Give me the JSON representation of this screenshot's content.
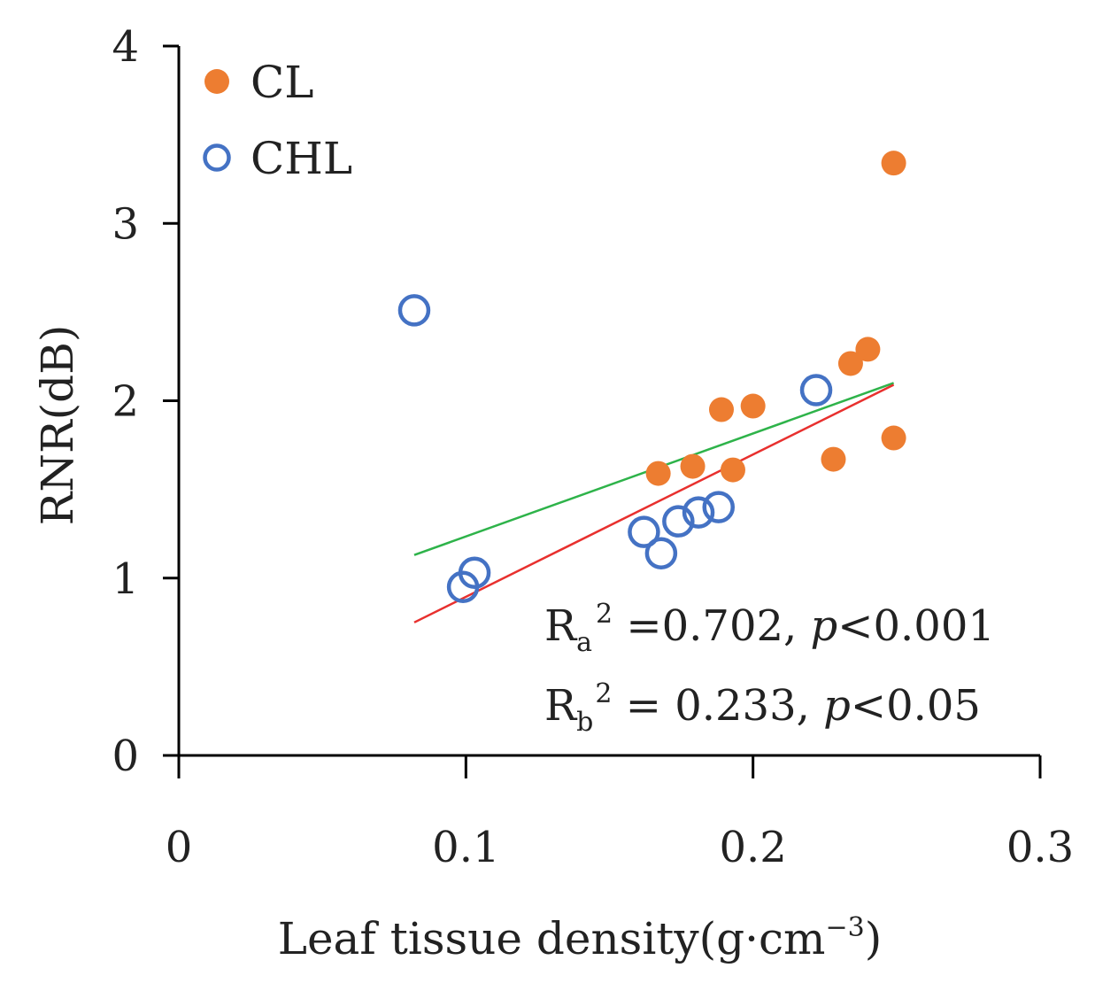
{
  "chart_data": {
    "type": "scatter",
    "title": "",
    "xlabel": "Leaf tissue density(g·cm−3)",
    "xlabel_base": "Leaf tissue density(g·cm",
    "xlabel_exp": "−3",
    "xlabel_close": ")",
    "ylabel": "RNR(dB)",
    "xlim": [
      0,
      0.3
    ],
    "ylim": [
      0,
      4
    ],
    "xticks": [
      0,
      0.1,
      0.2,
      0.3
    ],
    "xtick_labels": [
      "0",
      "0.1",
      "0.2",
      "0.3"
    ],
    "yticks": [
      0,
      1,
      2,
      3,
      4
    ],
    "ytick_labels": [
      "0",
      "1",
      "2",
      "3",
      "4"
    ],
    "grid": false,
    "legend_position": "top-left",
    "series": [
      {
        "name": "CL",
        "marker": "filled-circle",
        "color": "#ED7D31",
        "points": [
          [
            0.167,
            1.59
          ],
          [
            0.179,
            1.63
          ],
          [
            0.189,
            1.95
          ],
          [
            0.2,
            1.97
          ],
          [
            0.193,
            1.61
          ],
          [
            0.228,
            1.67
          ],
          [
            0.234,
            2.21
          ],
          [
            0.24,
            2.29
          ],
          [
            0.249,
            1.79
          ],
          [
            0.249,
            3.34
          ]
        ]
      },
      {
        "name": "CHL",
        "marker": "open-circle",
        "color": "#4472C4",
        "points": [
          [
            0.082,
            2.51
          ],
          [
            0.099,
            0.95
          ],
          [
            0.103,
            1.03
          ],
          [
            0.162,
            1.26
          ],
          [
            0.168,
            1.14
          ],
          [
            0.174,
            1.32
          ],
          [
            0.181,
            1.37
          ],
          [
            0.188,
            1.4
          ],
          [
            0.222,
            2.06
          ]
        ]
      }
    ],
    "fit_lines": [
      {
        "name": "green-fit",
        "color": "#2EB34A",
        "points": [
          [
            0.082,
            1.13
          ],
          [
            0.249,
            2.1
          ]
        ]
      },
      {
        "name": "red-fit",
        "color": "#E8302E",
        "points": [
          [
            0.082,
            0.75
          ],
          [
            0.249,
            2.09
          ]
        ]
      }
    ],
    "annotations": [
      {
        "name": "ra2-annotation",
        "prefix": "R",
        "subscript": "a",
        "superscript": "2",
        "middle": " =0.702, ",
        "italic": "p",
        "suffix": "<0.001",
        "full_text": "Ra2 =0.702, p<0.001"
      },
      {
        "name": "rb2-annotation",
        "prefix": "R",
        "subscript": "b",
        "superscript": "2",
        "middle": " = 0.233, ",
        "italic": "p",
        "suffix": "<0.05",
        "full_text": "Rb2 = 0.233, p<0.05"
      }
    ]
  }
}
